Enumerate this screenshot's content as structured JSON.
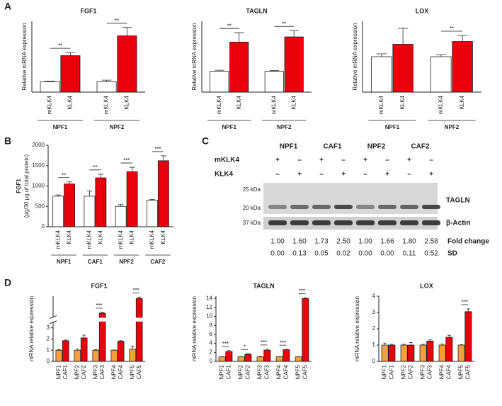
{
  "panel_labels": [
    "A",
    "B",
    "C",
    "D"
  ],
  "chart_data": [
    {
      "type": "bar",
      "title": "FGF1",
      "y_label": "Relative mRNA expression",
      "categories": [
        "mKLK4",
        "KLK4",
        "mKLK4",
        "KLK4"
      ],
      "groups": [
        "NPF1",
        "NPF2"
      ],
      "values": [
        1.0,
        3.5,
        1.0,
        5.4
      ],
      "errors": [
        0.05,
        0.3,
        0.15,
        0.8
      ],
      "significance": [
        "**",
        "**"
      ],
      "colors": [
        "#ffffff",
        "#e8000b"
      ],
      "ylim": [
        0,
        6.8
      ]
    },
    {
      "type": "bar",
      "title": "TAGLN",
      "y_label": "Relative mRNA expression",
      "categories": [
        "mKLK4",
        "KLK4",
        "mKLK4",
        "KLK4"
      ],
      "groups": [
        "NPF1",
        "NPF2"
      ],
      "values": [
        1.0,
        2.4,
        1.0,
        2.65
      ],
      "errors": [
        0.05,
        0.45,
        0.03,
        0.3
      ],
      "significance": [
        "**",
        "**"
      ],
      "colors": [
        "#ffffff",
        "#e8000b"
      ],
      "ylim": [
        0,
        3.4
      ]
    },
    {
      "type": "bar",
      "title": "LOX",
      "y_label": "Relative mRNA expression",
      "categories": [
        "mKLK4",
        "KLK4",
        "mKLK4",
        "KLK4"
      ],
      "groups": [
        "NPF1",
        "NPF2"
      ],
      "values": [
        1.0,
        1.35,
        1.0,
        1.43
      ],
      "errors": [
        0.08,
        0.45,
        0.06,
        0.17
      ],
      "significance": [
        null,
        "**"
      ],
      "colors": [
        "#ffffff",
        "#e8000b"
      ],
      "ylim": [
        0,
        2.0
      ]
    },
    {
      "type": "bar",
      "y_label": [
        "FGF1",
        "(pg/30 µg of total protein)"
      ],
      "categories": [
        "mKLK4",
        "KLK4",
        "mKLK4",
        "KLK4",
        "mKLK4",
        "KLK4",
        "mKLK4",
        "KLK4"
      ],
      "groups": [
        "NPF1",
        "CAF1",
        "NPF2",
        "CAF2"
      ],
      "values": [
        750,
        1050,
        750,
        1200,
        500,
        1350,
        650,
        1620
      ],
      "errors": [
        30,
        50,
        130,
        90,
        40,
        110,
        20,
        120
      ],
      "significance": [
        "**",
        "**",
        "***",
        "***"
      ],
      "colors": [
        "#ffffff",
        "#e8000b"
      ],
      "ylim": [
        0,
        2000
      ],
      "yticks": [
        0,
        500,
        1000,
        1500,
        2000
      ]
    },
    {
      "type": "bar",
      "title": "FGF1",
      "y_label": "mRNA relative expression",
      "categories": [
        "NPF1",
        "CAF1",
        "NPF2",
        "CAF2",
        "NPF3",
        "CAF3",
        "NPF4",
        "CAF4",
        "NPF5",
        "CAF5"
      ],
      "values": [
        1.0,
        1.85,
        1.0,
        2.1,
        1.0,
        14.5,
        1.0,
        1.8,
        1.1,
        31.5
      ],
      "errors": [
        0.05,
        0.07,
        0.1,
        0.25,
        0.05,
        0.8,
        0.02,
        0.05,
        0.25,
        1.5
      ],
      "significance": [
        null,
        null,
        "***",
        null,
        "***"
      ],
      "colors": [
        "#f5a03c",
        "#e8000b"
      ],
      "ylim": [
        0,
        34
      ],
      "axis_break": [
        3.5,
        10
      ],
      "yticks": [
        0,
        1,
        2,
        3
      ]
    },
    {
      "type": "bar",
      "title": "TAGLN",
      "y_label": "mRNA relative expression",
      "categories": [
        "NPF1",
        "CAF1",
        "NPF2",
        "CAF2",
        "NPF3",
        "CAF3",
        "NPF4",
        "CAF4",
        "NPF5",
        "CAF5"
      ],
      "values": [
        1.0,
        2.2,
        1.0,
        1.6,
        1.0,
        2.5,
        1.0,
        2.6,
        1.0,
        14.0
      ],
      "errors": [
        0.05,
        0.2,
        0.05,
        0.1,
        0.1,
        0.2,
        0.05,
        0.05,
        0.05,
        0.1
      ],
      "significance": [
        "***",
        "*",
        "***",
        "***",
        "***"
      ],
      "colors": [
        "#f5a03c",
        "#e8000b"
      ],
      "ylim": [
        0,
        14.5
      ],
      "yticks": [
        0,
        2,
        4,
        6,
        8,
        10,
        12,
        14
      ]
    },
    {
      "type": "bar",
      "title": "LOX",
      "y_label": "mRNA relative expression",
      "categories": [
        "NPF1",
        "CAF1",
        "NPF2",
        "CAF2",
        "NPF3",
        "CAF3",
        "NPF4",
        "CAF4",
        "NPF5",
        "CAF5"
      ],
      "values": [
        1.0,
        1.0,
        1.0,
        1.0,
        1.0,
        1.25,
        1.0,
        1.48,
        1.0,
        3.05
      ],
      "errors": [
        0.12,
        0.05,
        0.05,
        0.15,
        0.05,
        0.07,
        0.07,
        0.12,
        0.02,
        0.17
      ],
      "significance": [
        null,
        null,
        null,
        null,
        "***"
      ],
      "colors": [
        "#f5a03c",
        "#e8000b"
      ],
      "ylim": [
        0,
        4
      ],
      "yticks": [
        0,
        1,
        2,
        3,
        4
      ]
    }
  ],
  "blot": {
    "lanes": [
      "NPF1",
      "CAF1",
      "NPF2",
      "CAF2"
    ],
    "rows": [
      {
        "label": "mKLK4",
        "signs": [
          "+",
          "–",
          "+",
          "–",
          "+",
          "–",
          "+",
          "–"
        ]
      },
      {
        "label": "KLK4",
        "signs": [
          "–",
          "+",
          "–",
          "+",
          "–",
          "+",
          "–",
          "+"
        ]
      }
    ],
    "markers": [
      "25 kDa",
      "20 kDa",
      "37 kDa"
    ],
    "bands": [
      "TAGLN",
      "β-Actin"
    ],
    "fold_change": {
      "label": "Fold change",
      "values": [
        "1.00",
        "1.60",
        "1.73",
        "2.50",
        "1.00",
        "1.66",
        "1.80",
        "2.58"
      ]
    },
    "sd": {
      "label": "SD",
      "values": [
        "0.00",
        "0.13",
        "0.05",
        "0.02",
        "0.00",
        "0.00",
        "0.11",
        "0.52"
      ]
    }
  }
}
